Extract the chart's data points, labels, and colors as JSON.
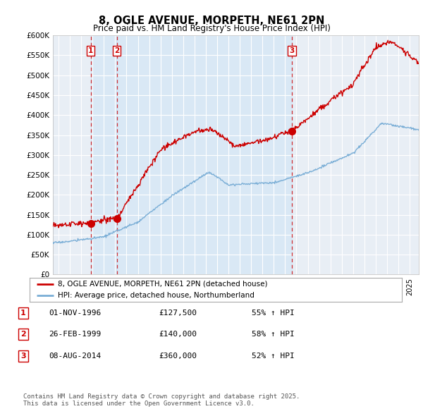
{
  "title": "8, OGLE AVENUE, MORPETH, NE61 2PN",
  "subtitle": "Price paid vs. HM Land Registry's House Price Index (HPI)",
  "background_color": "#ffffff",
  "plot_bg_color": "#e8eef5",
  "grid_color": "#ffffff",
  "hpi_line_color": "#7aaed6",
  "price_line_color": "#cc0000",
  "sale_marker_color": "#cc0000",
  "sale_band_color": "#d0e4f5",
  "ylim": [
    0,
    600000
  ],
  "yticks": [
    0,
    50000,
    100000,
    150000,
    200000,
    250000,
    300000,
    350000,
    400000,
    450000,
    500000,
    550000,
    600000
  ],
  "ytick_labels": [
    "£0",
    "£50K",
    "£100K",
    "£150K",
    "£200K",
    "£250K",
    "£300K",
    "£350K",
    "£400K",
    "£450K",
    "£500K",
    "£550K",
    "£600K"
  ],
  "legend_label_red": "8, OGLE AVENUE, MORPETH, NE61 2PN (detached house)",
  "legend_label_blue": "HPI: Average price, detached house, Northumberland",
  "sale_points": [
    {
      "date": 1996.84,
      "price": 127500,
      "label": "1"
    },
    {
      "date": 1999.15,
      "price": 140000,
      "label": "2"
    },
    {
      "date": 2014.6,
      "price": 360000,
      "label": "3"
    }
  ],
  "table_rows": [
    {
      "num": "1",
      "date": "01-NOV-1996",
      "price": "£127,500",
      "hpi": "55% ↑ HPI"
    },
    {
      "num": "2",
      "date": "26-FEB-1999",
      "price": "£140,000",
      "hpi": "58% ↑ HPI"
    },
    {
      "num": "3",
      "date": "08-AUG-2014",
      "price": "£360,000",
      "hpi": "52% ↑ HPI"
    }
  ],
  "footer": "Contains HM Land Registry data © Crown copyright and database right 2025.\nThis data is licensed under the Open Government Licence v3.0.",
  "xmin": 1993.5,
  "xmax": 2025.8
}
